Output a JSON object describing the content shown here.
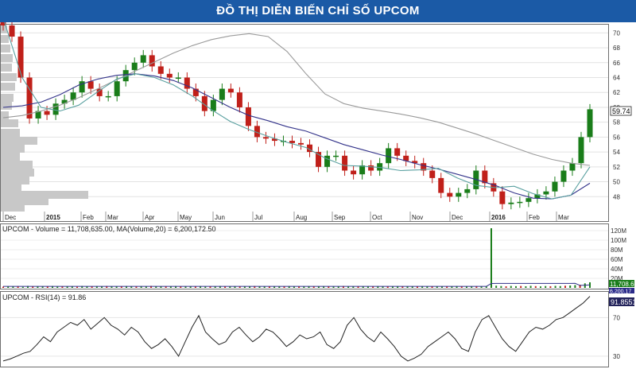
{
  "banner": {
    "title": "ĐỒ THỊ DIỄN BIẾN CHỈ SỐ UPCOM"
  },
  "colors": {
    "banner": "#1b5aa6",
    "up": "#1a7d1a",
    "down": "#c0201a",
    "ma_long": "#9a9a9a",
    "ma_mid": "#33338a",
    "ma_short": "#5aa0a0",
    "rsi": "#222222"
  },
  "chart_data": [
    {
      "type": "line",
      "title": "",
      "xlabel": "",
      "ylabel": "",
      "ylim": [
        46,
        71
      ],
      "yticks": [
        48,
        50,
        52,
        54,
        56,
        58,
        60,
        62,
        64,
        66,
        68,
        70
      ],
      "x_labels": [
        "Dec",
        "2015",
        "Feb",
        "Mar",
        "Apr",
        "May",
        "Jun",
        "Jul",
        "Aug",
        "Sep",
        "Oct",
        "Nov",
        "Dec",
        "2016",
        "Feb",
        "Mar"
      ],
      "last_value": "59.74",
      "grid": true,
      "close": [
        71,
        69.5,
        64,
        58.5,
        59.5,
        59,
        60.5,
        61,
        62,
        63.5,
        62.5,
        61.5,
        61.5,
        63.5,
        65,
        66,
        67,
        65.5,
        64.5,
        64,
        64,
        62.5,
        61.5,
        59.5,
        61,
        62.5,
        62,
        60,
        57.5,
        56,
        55.8,
        55.5,
        55.5,
        55.2,
        55,
        54,
        52,
        53.5,
        53.5,
        51.5,
        51,
        52.2,
        51.5,
        52.5,
        54.5,
        53.5,
        52.8,
        52.5,
        51.5,
        50.5,
        48.5,
        48,
        48.5,
        49,
        51.5,
        49.8,
        48.7,
        47,
        47.2,
        47.3,
        47.8,
        48.3,
        48.7,
        50,
        51.5,
        52.5,
        56,
        59.74
      ],
      "series": [
        {
          "name": "",
          "role": "ma_long",
          "values": [
            58.6,
            58.9,
            59.5,
            60.3,
            61.3,
            62.5,
            63.7,
            64.9,
            66.1,
            67.3,
            68.3,
            69.1,
            69.6,
            69.9,
            69.5,
            67.5,
            64.5,
            61.8,
            60.5,
            59.9,
            59.5,
            59.1,
            58.6,
            58,
            57.2,
            56.4,
            55.5,
            54.6,
            53.7,
            53,
            52.5,
            52.2
          ]
        },
        {
          "name": "",
          "role": "ma_mid",
          "values": [
            60,
            60.2,
            60.7,
            61.7,
            63,
            63.8,
            64.3,
            64.5,
            64.2,
            63.6,
            62.6,
            61.3,
            60,
            58.9,
            58.2,
            57.4,
            56.8,
            55.9,
            55,
            54.3,
            53.6,
            53,
            52.3,
            51.7,
            51,
            50.3,
            49.5,
            48.5,
            47.8,
            47.7,
            48.2,
            49.8
          ]
        },
        {
          "name": "",
          "role": "ma_short",
          "values": [
            72,
            64,
            60,
            59.5,
            60.3,
            62.1,
            63.8,
            64.5,
            64,
            63,
            61.5,
            59.7,
            58.1,
            57,
            56.1,
            55.3,
            54.6,
            53.2,
            52.2,
            52.1,
            51.9,
            51.5,
            51.6,
            51.8,
            50.5,
            49.5,
            49.2,
            49.4,
            48.4,
            47.7,
            48.2,
            52
          ]
        }
      ]
    },
    {
      "type": "bar",
      "title": "UPCOM - Volume = 11,708,635.00, MA(Volume,20) = 6,200,172.50",
      "ylim": [
        0,
        130
      ],
      "yticks": [
        "20M",
        "40M",
        "60M",
        "80M",
        "100M",
        "120M"
      ],
      "ytick_values": [
        20,
        40,
        60,
        80,
        100,
        120
      ],
      "unit": "M",
      "values": [
        2.5,
        3.2,
        2.8,
        3.6,
        2.2,
        4.1,
        3.0,
        2.6,
        3.4,
        2.9,
        3.8,
        2.4,
        3.1,
        2.7,
        3.5,
        2.3,
        4.0,
        3.3,
        2.8,
        3.6,
        2.5,
        3.9,
        2.9,
        3.2,
        2.6,
        3.7,
        3.0,
        2.4,
        3.5,
        2.8,
        4.2,
        3.1,
        2.6,
        3.3,
        2.9,
        3.7,
        2.5,
        3.4,
        3.0,
        2.7,
        3.6,
        2.4,
        3.2,
        2.9,
        3.8,
        2.6,
        3.1,
        3.5,
        2.8,
        3.3,
        2.7,
        3.9,
        2.5,
        3.2,
        2.9,
        3.4,
        3.0,
        2.6,
        3.7,
        2.8,
        3.3,
        2.5,
        3.6,
        3.1,
        2.7,
        3.5,
        2.9,
        3.2,
        2.6,
        3.8,
        3.0,
        2.7,
        3.4,
        2.5,
        3.3,
        2.9,
        3.6,
        2.8,
        3.1,
        2.6,
        3.5,
        3.0,
        2.8,
        3.3,
        2.7,
        3.6,
        2.9,
        3.2,
        2.5,
        3.4,
        3.0,
        2.8,
        3.7,
        2.6,
        3.2,
        2.9,
        3.5,
        2.7,
        3.1,
        125,
        4.5,
        3.8,
        3.2,
        4.0,
        3.5,
        3.9,
        3.3,
        4.2,
        3.6,
        3.1,
        3.8,
        3.4,
        4.1,
        3.7,
        4.4,
        5.0,
        5.8,
        6.5,
        9.5,
        11.7
      ],
      "ma": [
        3.1,
        3.1,
        3.1,
        3.1,
        3.1,
        3.1,
        3.1,
        3.1,
        3.1,
        3.1,
        3.1,
        3.1,
        3.1,
        3.1,
        3.1,
        3.1,
        3.1,
        3.1,
        3.1,
        3.1,
        3.1,
        3.1,
        3.1,
        3.1,
        3.1,
        3.1,
        3.1,
        3.1,
        3.1,
        3.1,
        3.1,
        3.1,
        3.1,
        3.1,
        3.1,
        3.1,
        3.1,
        3.1,
        3.1,
        3.1,
        3.1,
        3.1,
        3.1,
        3.1,
        3.1,
        3.1,
        3.1,
        3.1,
        3.1,
        3.1,
        3.1,
        3.1,
        3.1,
        3.1,
        3.1,
        3.1,
        3.1,
        3.1,
        3.1,
        3.1,
        3.1,
        3.1,
        3.1,
        3.1,
        3.1,
        3.1,
        3.1,
        3.1,
        3.1,
        3.1,
        3.1,
        3.1,
        3.1,
        3.1,
        3.1,
        3.1,
        3.1,
        3.1,
        3.1,
        3.1,
        3.1,
        3.1,
        3.1,
        3.1,
        3.1,
        3.1,
        3.1,
        3.1,
        3.1,
        3.1,
        3.1,
        3.1,
        3.1,
        3.1,
        3.1,
        3.1,
        3.1,
        3.1,
        3.1,
        9.2,
        9.3,
        9.3,
        9.3,
        9.3,
        9.3,
        9.3,
        9.3,
        9.3,
        9.3,
        9.3,
        9.3,
        9.3,
        9.3,
        9.3,
        9.3,
        9.4,
        9.5,
        5.2,
        5.6,
        6.2
      ],
      "last_values": [
        "11,708.6",
        "6,200.17"
      ]
    },
    {
      "type": "line",
      "title": "UPCOM - RSI(14) = 91.86",
      "ylim": [
        20,
        95
      ],
      "yticks": [
        30,
        70
      ],
      "last_value": "91.8551",
      "values": [
        25,
        27,
        30,
        33,
        35,
        42,
        50,
        45,
        55,
        60,
        65,
        62,
        68,
        58,
        64,
        70,
        62,
        58,
        52,
        60,
        55,
        45,
        38,
        42,
        48,
        40,
        30,
        45,
        60,
        72,
        55,
        48,
        42,
        45,
        55,
        60,
        52,
        45,
        50,
        58,
        55,
        48,
        40,
        45,
        52,
        48,
        50,
        55,
        42,
        38,
        45,
        62,
        70,
        58,
        50,
        45,
        55,
        48,
        40,
        30,
        25,
        28,
        32,
        40,
        45,
        50,
        55,
        48,
        38,
        35,
        55,
        68,
        72,
        60,
        48,
        40,
        35,
        45,
        55,
        60,
        58,
        62,
        68,
        70,
        75,
        80,
        85,
        92
      ]
    }
  ]
}
